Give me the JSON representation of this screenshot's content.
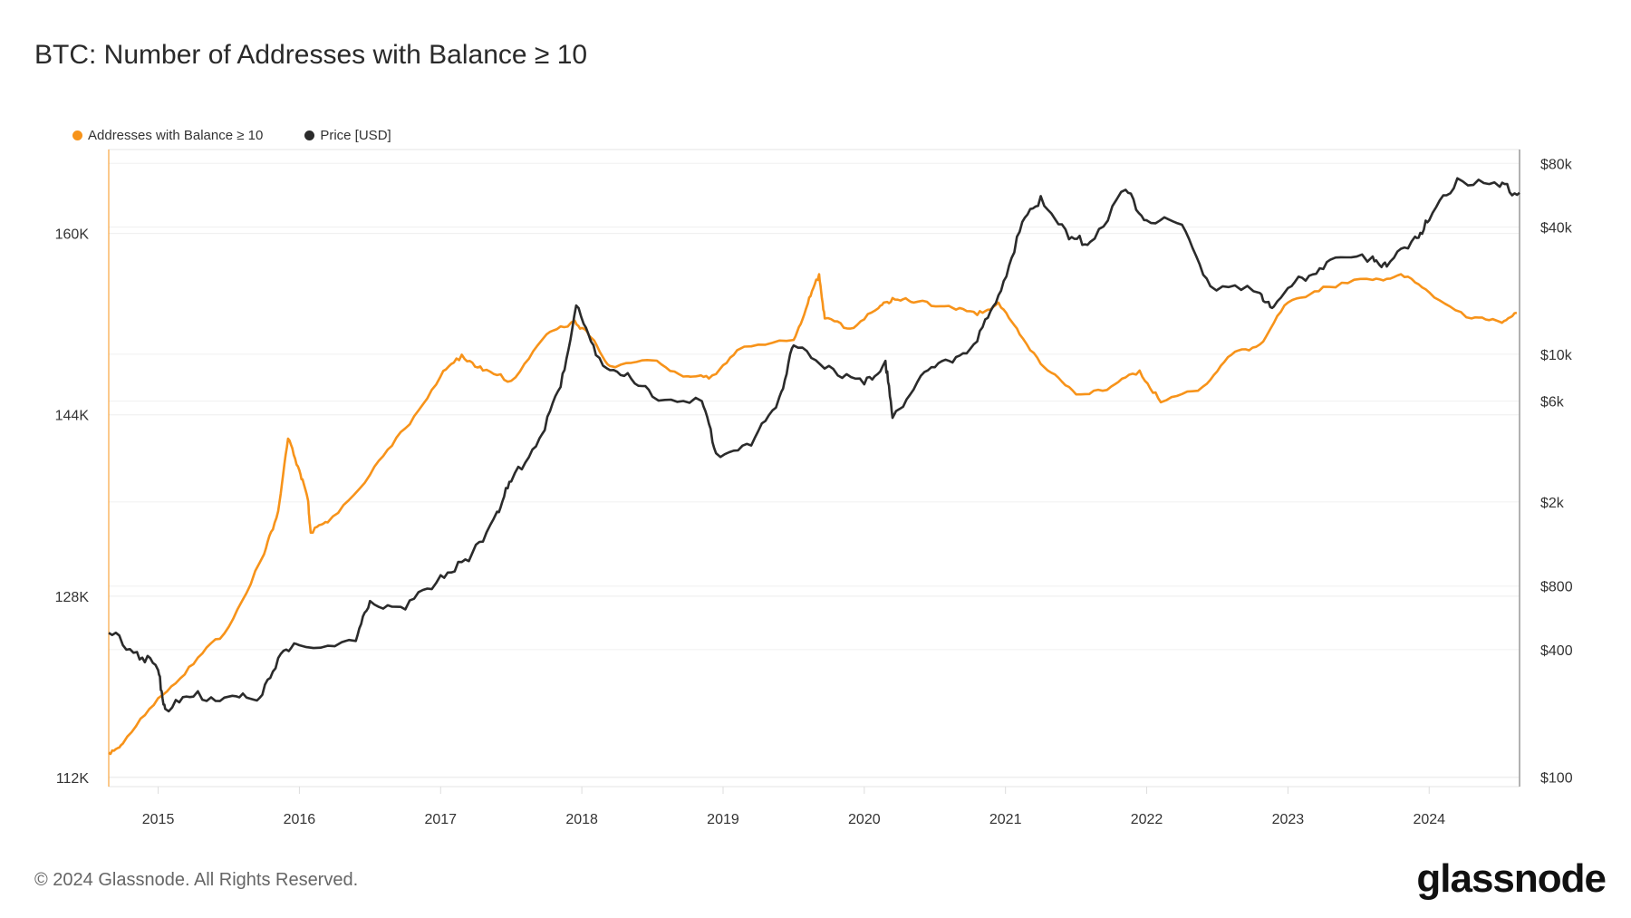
{
  "title": "BTC: Number of Addresses with Balance ≥ 10",
  "footer": {
    "copyright": "© 2024 Glassnode. All Rights Reserved.",
    "logo": "glassnode"
  },
  "colors": {
    "addresses": "#f7931a",
    "price": "#2b2b2b"
  },
  "chart_data": {
    "type": "line",
    "title": "BTC: Number of Addresses with Balance ≥ 10",
    "legend": [
      {
        "name": "Addresses with Balance ≥ 10",
        "color": "#f7931a"
      },
      {
        "name": "Price [USD]",
        "color": "#2b2b2b"
      }
    ],
    "legend_position": "top-left",
    "xlim": [
      2014.65,
      2024.64
    ],
    "x_ticks": [
      2015,
      2016,
      2017,
      2018,
      2019,
      2020,
      2021,
      2022,
      2023,
      2024
    ],
    "x_tick_labels": [
      "2015",
      "2016",
      "2017",
      "2018",
      "2019",
      "2020",
      "2021",
      "2022",
      "2023",
      "2024"
    ],
    "y_left": {
      "ylim": [
        111200,
        167400
      ],
      "ticks": [
        112000,
        128000,
        144000,
        160000
      ],
      "tick_labels": [
        "112K",
        "128K",
        "144K",
        "160K"
      ],
      "scale": "linear"
    },
    "y_right": {
      "ylim": [
        90,
        93000
      ],
      "ticks": [
        100,
        400,
        800,
        2000,
        6000,
        10000,
        40000,
        80000
      ],
      "tick_labels": [
        "$100",
        "$400",
        "$800",
        "$2k",
        "$6k",
        "$10k",
        "$40k",
        "$80k"
      ],
      "scale": "log"
    },
    "series": [
      {
        "name": "Addresses with Balance ≥ 10",
        "axis": "left",
        "x": [
          2014.65,
          2014.75,
          2015.0,
          2015.25,
          2015.5,
          2015.75,
          2015.85,
          2015.92,
          2016.0,
          2016.06,
          2016.08,
          2016.2,
          2016.5,
          2016.75,
          2017.0,
          2017.15,
          2017.3,
          2017.5,
          2017.75,
          2017.95,
          2018.05,
          2018.2,
          2018.5,
          2018.75,
          2018.9,
          2019.1,
          2019.5,
          2019.6,
          2019.68,
          2019.72,
          2019.9,
          2020.1,
          2020.2,
          2020.35,
          2020.6,
          2020.8,
          2020.95,
          2021.1,
          2021.3,
          2021.5,
          2021.75,
          2021.95,
          2022.1,
          2022.4,
          2022.6,
          2022.8,
          2023.0,
          2023.25,
          2023.6,
          2023.8,
          2024.0,
          2024.3,
          2024.5,
          2024.62
        ],
        "values": [
          114200,
          115000,
          119000,
          122000,
          125300,
          131700,
          135500,
          141900,
          139100,
          136500,
          133600,
          134500,
          138700,
          142800,
          147400,
          149300,
          147900,
          147000,
          151100,
          152300,
          151000,
          148300,
          148800,
          147400,
          147200,
          149700,
          150600,
          153800,
          156400,
          152500,
          151600,
          153400,
          154300,
          153900,
          153600,
          152800,
          153900,
          151100,
          147900,
          145800,
          146500,
          147900,
          145100,
          146500,
          149300,
          150200,
          153900,
          155300,
          155900,
          156400,
          154800,
          152500,
          152200,
          153000
        ]
      },
      {
        "name": "Price [USD]",
        "axis": "right",
        "x": [
          2014.65,
          2014.85,
          2015.0,
          2015.05,
          2015.25,
          2015.5,
          2015.7,
          2015.85,
          2016.0,
          2016.4,
          2016.5,
          2016.75,
          2017.0,
          2017.2,
          2017.4,
          2017.5,
          2017.7,
          2017.85,
          2017.96,
          2018.1,
          2018.3,
          2018.5,
          2018.85,
          2018.95,
          2019.2,
          2019.4,
          2019.5,
          2019.75,
          2020.0,
          2020.15,
          2020.2,
          2020.4,
          2020.6,
          2020.8,
          2020.95,
          2021.1,
          2021.25,
          2021.45,
          2021.6,
          2021.85,
          2022.0,
          2022.25,
          2022.45,
          2022.8,
          2022.9,
          2023.1,
          2023.3,
          2023.6,
          2023.7,
          2023.9,
          2024.0,
          2024.2,
          2024.5,
          2024.64
        ],
        "values": [
          480,
          390,
          320,
          210,
          240,
          240,
          230,
          365,
          420,
          440,
          680,
          620,
          900,
          1050,
          1800,
          2500,
          4000,
          7000,
          17000,
          9900,
          7900,
          6300,
          6000,
          3400,
          3700,
          6300,
          11000,
          8800,
          7200,
          9300,
          5000,
          7900,
          9300,
          11500,
          19000,
          38000,
          56000,
          35000,
          34000,
          60000,
          43000,
          41000,
          21000,
          19500,
          16800,
          23000,
          28000,
          29000,
          26000,
          36000,
          43000,
          68000,
          62000,
          58000
        ]
      }
    ]
  }
}
